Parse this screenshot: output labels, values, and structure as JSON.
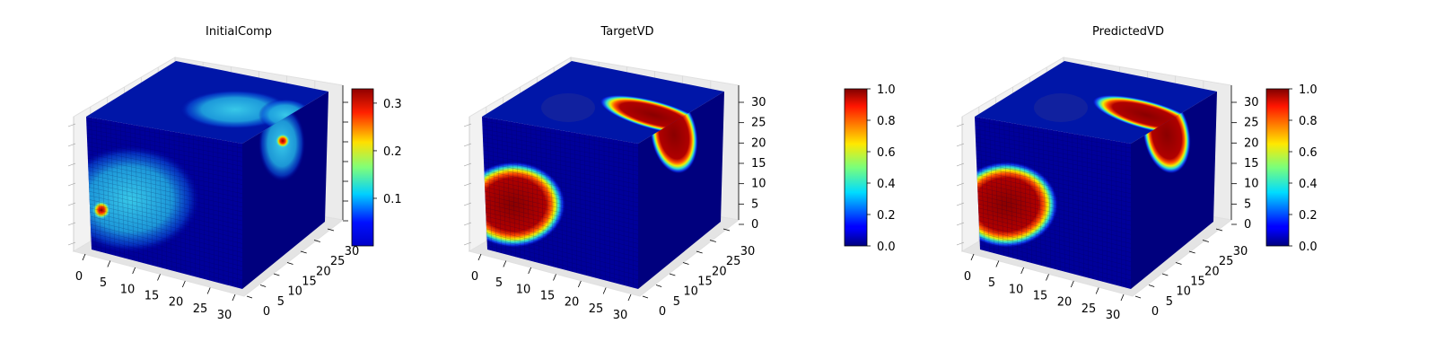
{
  "chart_data": [
    {
      "type": "voxel3d",
      "title": "InitialComp",
      "x_ticks": [
        "0",
        "5",
        "10",
        "15",
        "20",
        "25",
        "30"
      ],
      "y_ticks": [
        "0",
        "5",
        "10",
        "15",
        "20",
        "25",
        "30"
      ],
      "z_ticks": [],
      "colorbar": {
        "ticks": [
          "0.1",
          "0.2",
          "0.3"
        ],
        "tick_values": [
          0.1,
          0.2,
          0.3
        ],
        "range": [
          0.0,
          0.33
        ]
      },
      "features": [
        "light blue blob on front face",
        "light blue blob on top face",
        "hot spot on front face",
        "hot spot on right face"
      ]
    },
    {
      "type": "voxel3d",
      "title": "TargetVD",
      "x_ticks": [
        "0",
        "5",
        "10",
        "15",
        "20",
        "25",
        "30"
      ],
      "y_ticks": [
        "0",
        "5",
        "10",
        "15",
        "20",
        "25",
        "30"
      ],
      "z_ticks": [
        "0",
        "5",
        "10",
        "15",
        "20",
        "25",
        "30"
      ],
      "colorbar": {
        "ticks": [
          "0.0",
          "0.2",
          "0.4",
          "0.6",
          "0.8",
          "1.0"
        ],
        "tick_values": [
          0.0,
          0.2,
          0.4,
          0.6,
          0.8,
          1.0
        ],
        "range": [
          0.0,
          1.0
        ]
      },
      "features": [
        "red blob on front face",
        "red L-shaped region on top and right face"
      ]
    },
    {
      "type": "voxel3d",
      "title": "PredictedVD",
      "x_ticks": [
        "0",
        "5",
        "10",
        "15",
        "20",
        "25",
        "30"
      ],
      "y_ticks": [
        "0",
        "5",
        "10",
        "15",
        "20",
        "25",
        "30"
      ],
      "z_ticks": [
        "0",
        "5",
        "10",
        "15",
        "20",
        "25",
        "30"
      ],
      "colorbar": {
        "ticks": [
          "0.0",
          "0.2",
          "0.4",
          "0.6",
          "0.8",
          "1.0"
        ],
        "tick_values": [
          0.0,
          0.2,
          0.4,
          0.6,
          0.8,
          1.0
        ],
        "range": [
          0.0,
          1.0
        ]
      },
      "features": [
        "red blob on front face",
        "red L-shaped region on top and right face"
      ]
    }
  ],
  "colors": {
    "cube_base": "#00008f",
    "cube_top": "#0010a6",
    "cube_side": "#000080",
    "pane": "#f0f0f0",
    "pane_line": "#d0d0d0"
  }
}
